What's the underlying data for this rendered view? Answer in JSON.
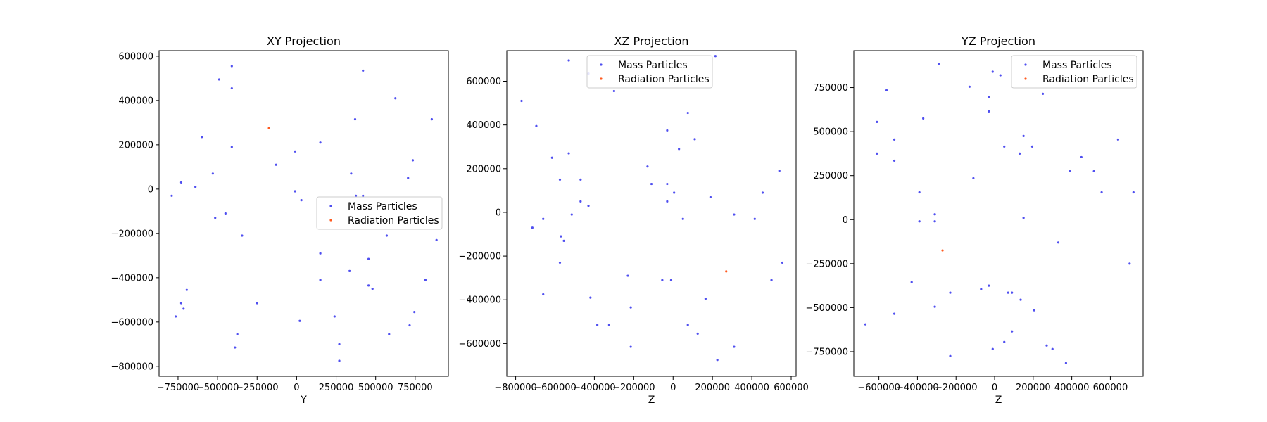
{
  "colors": {
    "mass": "#4f4ff0",
    "radiation": "#ff5a1f"
  },
  "chart_data": [
    {
      "type": "scatter",
      "title": "XY Projection",
      "xlabel": "Y",
      "ylabel": "",
      "xlim": [
        -870000,
        960000
      ],
      "ylim": [
        -845000,
        625000
      ],
      "xticks": [
        -750000,
        -500000,
        -250000,
        0,
        250000,
        500000,
        750000
      ],
      "xtick_labels": [
        "−750000",
        "−500000",
        "−250000",
        "0",
        "250000",
        "500000",
        "750000"
      ],
      "yticks": [
        -800000,
        -600000,
        -400000,
        -200000,
        0,
        200000,
        400000,
        600000
      ],
      "ytick_labels": [
        "−800000",
        "−600000",
        "−400000",
        "−200000",
        "0",
        "200000",
        "400000",
        "600000"
      ],
      "grid": false,
      "legend": {
        "position": "center-right",
        "entries": [
          "Mass Particles",
          "Radiation Particles"
        ]
      },
      "series": [
        {
          "name": "Mass Particles",
          "color": "#4f4ff0",
          "points": [
            [
              -410000,
              555000
            ],
            [
              -490000,
              495000
            ],
            [
              -410000,
              455000
            ],
            [
              420000,
              535000
            ],
            [
              625000,
              410000
            ],
            [
              370000,
              315000
            ],
            [
              855000,
              315000
            ],
            [
              -600000,
              235000
            ],
            [
              150000,
              210000
            ],
            [
              -410000,
              190000
            ],
            [
              -10000,
              170000
            ],
            [
              -130000,
              110000
            ],
            [
              735000,
              130000
            ],
            [
              -530000,
              70000
            ],
            [
              345000,
              70000
            ],
            [
              705000,
              50000
            ],
            [
              -730000,
              30000
            ],
            [
              -640000,
              10000
            ],
            [
              -790000,
              -30000
            ],
            [
              -10000,
              -10000
            ],
            [
              30000,
              -50000
            ],
            [
              375000,
              -30000
            ],
            [
              420000,
              -30000
            ],
            [
              -450000,
              -110000
            ],
            [
              -515000,
              -130000
            ],
            [
              -345000,
              -210000
            ],
            [
              570000,
              -210000
            ],
            [
              885000,
              -230000
            ],
            [
              150000,
              -290000
            ],
            [
              455000,
              -315000
            ],
            [
              335000,
              -370000
            ],
            [
              150000,
              -410000
            ],
            [
              815000,
              -410000
            ],
            [
              455000,
              -435000
            ],
            [
              480000,
              -450000
            ],
            [
              -695000,
              -455000
            ],
            [
              -730000,
              -515000
            ],
            [
              -250000,
              -515000
            ],
            [
              -715000,
              -540000
            ],
            [
              745000,
              -555000
            ],
            [
              -765000,
              -575000
            ],
            [
              240000,
              -575000
            ],
            [
              20000,
              -595000
            ],
            [
              715000,
              -615000
            ],
            [
              -375000,
              -655000
            ],
            [
              585000,
              -655000
            ],
            [
              270000,
              -700000
            ],
            [
              -390000,
              -715000
            ],
            [
              270000,
              -775000
            ]
          ]
        },
        {
          "name": "Radiation Particles",
          "color": "#ff5a1f",
          "points": [
            [
              -175000,
              275000
            ]
          ]
        }
      ]
    },
    {
      "type": "scatter",
      "title": "XZ Projection",
      "xlabel": "Z",
      "ylabel": "",
      "xlim": [
        -845000,
        625000
      ],
      "ylim": [
        -750000,
        740000
      ],
      "xticks": [
        -800000,
        -600000,
        -400000,
        -200000,
        0,
        200000,
        400000,
        600000
      ],
      "xtick_labels": [
        "−800000",
        "−600000",
        "−400000",
        "−200000",
        "0",
        "200000",
        "400000",
        "600000"
      ],
      "yticks": [
        -600000,
        -400000,
        -200000,
        0,
        200000,
        400000,
        600000
      ],
      "ytick_labels": [
        "−600000",
        "−400000",
        "−200000",
        "0",
        "200000",
        "400000",
        "600000"
      ],
      "grid": false,
      "legend": {
        "position": "upper-center",
        "entries": [
          "Mass Particles",
          "Radiation Particles"
        ]
      },
      "series": [
        {
          "name": "Mass Particles",
          "color": "#4f4ff0",
          "points": [
            [
              -530000,
              695000
            ],
            [
              215000,
              715000
            ],
            [
              -430000,
              635000
            ],
            [
              -770000,
              510000
            ],
            [
              -300000,
              555000
            ],
            [
              -695000,
              395000
            ],
            [
              75000,
              455000
            ],
            [
              -30000,
              375000
            ],
            [
              110000,
              335000
            ],
            [
              30000,
              290000
            ],
            [
              -530000,
              270000
            ],
            [
              -615000,
              250000
            ],
            [
              -575000,
              150000
            ],
            [
              -470000,
              150000
            ],
            [
              -130000,
              210000
            ],
            [
              540000,
              190000
            ],
            [
              -110000,
              130000
            ],
            [
              -30000,
              130000
            ],
            [
              5000,
              90000
            ],
            [
              455000,
              90000
            ],
            [
              -30000,
              50000
            ],
            [
              190000,
              70000
            ],
            [
              -470000,
              50000
            ],
            [
              -430000,
              30000
            ],
            [
              -660000,
              -30000
            ],
            [
              -515000,
              -10000
            ],
            [
              50000,
              -30000
            ],
            [
              310000,
              -10000
            ],
            [
              415000,
              -30000
            ],
            [
              -715000,
              -70000
            ],
            [
              -570000,
              -110000
            ],
            [
              -555000,
              -130000
            ],
            [
              -575000,
              -230000
            ],
            [
              555000,
              -230000
            ],
            [
              -230000,
              -290000
            ],
            [
              -55000,
              -310000
            ],
            [
              -10000,
              -310000
            ],
            [
              500000,
              -310000
            ],
            [
              -660000,
              -375000
            ],
            [
              -420000,
              -390000
            ],
            [
              165000,
              -395000
            ],
            [
              -215000,
              -435000
            ],
            [
              -385000,
              -515000
            ],
            [
              -325000,
              -515000
            ],
            [
              75000,
              -515000
            ],
            [
              125000,
              -555000
            ],
            [
              -215000,
              -615000
            ],
            [
              310000,
              -615000
            ],
            [
              225000,
              -675000
            ]
          ]
        },
        {
          "name": "Radiation Particles",
          "color": "#ff5a1f",
          "points": [
            [
              270000,
              -270000
            ]
          ]
        }
      ]
    },
    {
      "type": "scatter",
      "title": "YZ Projection",
      "xlabel": "Z",
      "ylabel": "",
      "xlim": [
        -730000,
        770000
      ],
      "ylim": [
        -890000,
        960000
      ],
      "xticks": [
        -600000,
        -400000,
        -200000,
        0,
        200000,
        400000,
        600000
      ],
      "xtick_labels": [
        "−600000",
        "−400000",
        "−200000",
        "0",
        "200000",
        "400000",
        "600000"
      ],
      "yticks": [
        -750000,
        -500000,
        -250000,
        0,
        250000,
        500000,
        750000
      ],
      "ytick_labels": [
        "−750000",
        "−500000",
        "−250000",
        "0",
        "250000",
        "500000",
        "750000"
      ],
      "grid": false,
      "legend": {
        "position": "upper-right",
        "entries": [
          "Mass Particles",
          "Radiation Particles"
        ]
      },
      "series": [
        {
          "name": "Mass Particles",
          "color": "#4f4ff0",
          "points": [
            [
              -290000,
              885000
            ],
            [
              -10000,
              840000
            ],
            [
              30000,
              820000
            ],
            [
              -560000,
              735000
            ],
            [
              -130000,
              755000
            ],
            [
              250000,
              715000
            ],
            [
              -30000,
              695000
            ],
            [
              -30000,
              615000
            ],
            [
              -370000,
              575000
            ],
            [
              -610000,
              555000
            ],
            [
              150000,
              475000
            ],
            [
              640000,
              455000
            ],
            [
              -520000,
              455000
            ],
            [
              50000,
              415000
            ],
            [
              195000,
              415000
            ],
            [
              -610000,
              375000
            ],
            [
              130000,
              375000
            ],
            [
              450000,
              355000
            ],
            [
              -520000,
              335000
            ],
            [
              390000,
              275000
            ],
            [
              515000,
              275000
            ],
            [
              -110000,
              235000
            ],
            [
              -390000,
              155000
            ],
            [
              555000,
              155000
            ],
            [
              720000,
              155000
            ],
            [
              -310000,
              30000
            ],
            [
              -390000,
              -10000
            ],
            [
              -310000,
              -10000
            ],
            [
              150000,
              10000
            ],
            [
              330000,
              -130000
            ],
            [
              700000,
              -250000
            ],
            [
              -430000,
              -355000
            ],
            [
              -30000,
              -375000
            ],
            [
              -70000,
              -395000
            ],
            [
              -230000,
              -415000
            ],
            [
              70000,
              -415000
            ],
            [
              90000,
              -415000
            ],
            [
              135000,
              -455000
            ],
            [
              -310000,
              -495000
            ],
            [
              205000,
              -515000
            ],
            [
              -520000,
              -535000
            ],
            [
              -670000,
              -595000
            ],
            [
              90000,
              -635000
            ],
            [
              50000,
              -695000
            ],
            [
              -10000,
              -735000
            ],
            [
              270000,
              -715000
            ],
            [
              300000,
              -735000
            ],
            [
              -230000,
              -775000
            ],
            [
              370000,
              -815000
            ]
          ]
        },
        {
          "name": "Radiation Particles",
          "color": "#ff5a1f",
          "points": [
            [
              -270000,
              -175000
            ]
          ]
        }
      ]
    }
  ]
}
